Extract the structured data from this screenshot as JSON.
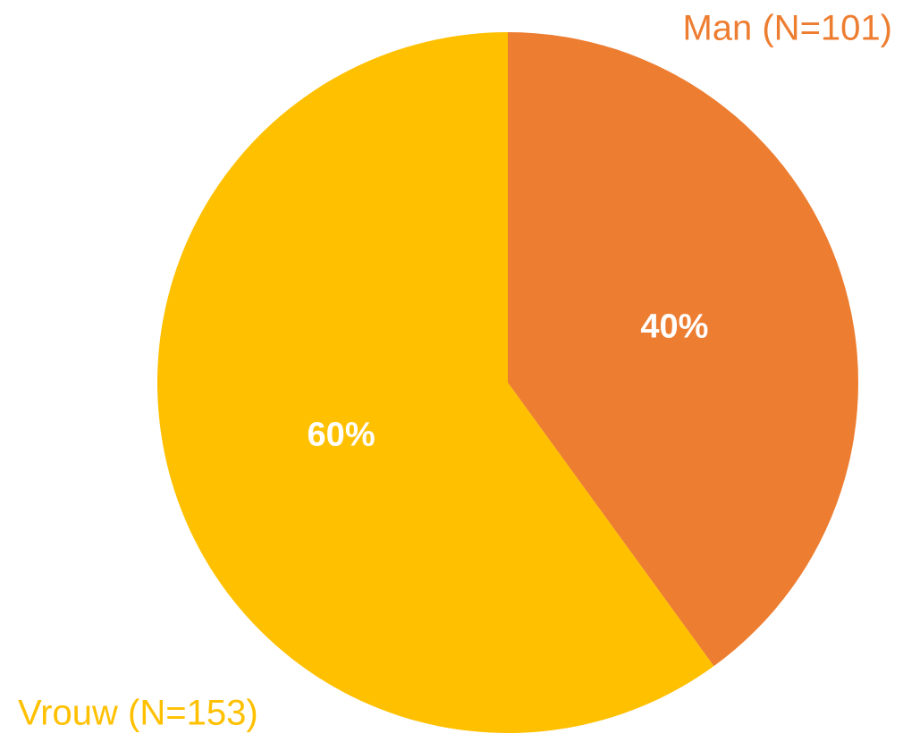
{
  "chart_data": {
    "type": "pie",
    "categories": [
      "Man (N=101)",
      "Vrouw (N=153)"
    ],
    "values": [
      40,
      60
    ],
    "value_labels": [
      "40%",
      "60%"
    ],
    "colors": [
      "#ED7D31",
      "#FFC000"
    ]
  }
}
